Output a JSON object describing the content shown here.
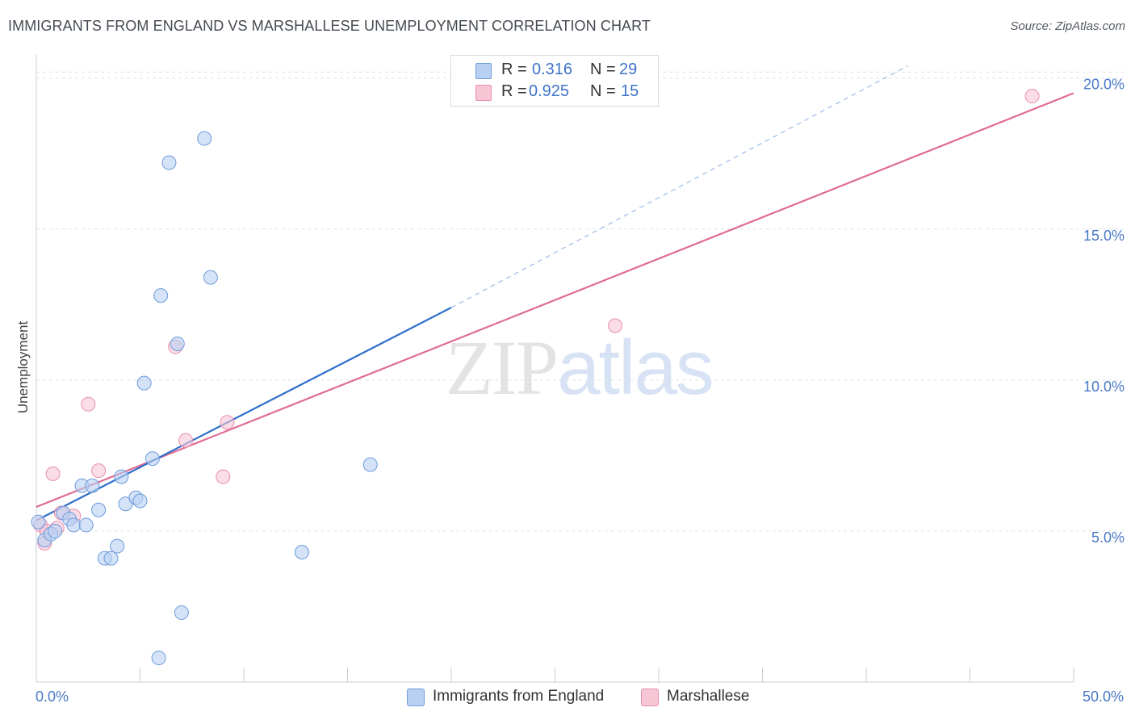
{
  "header": {
    "title": "IMMIGRANTS FROM ENGLAND VS MARSHALLESE UNEMPLOYMENT CORRELATION CHART",
    "source": "Source: ZipAtlas.com"
  },
  "watermark": {
    "zip": "ZIP",
    "atlas": "atlas"
  },
  "legend": {
    "rows": [
      {
        "r_label": "R =",
        "r_value": "0.316",
        "n_label": "N =",
        "n_value": "29"
      },
      {
        "r_label": "R =",
        "r_value": "0.925",
        "n_label": "N =",
        "n_value": "15"
      }
    ]
  },
  "bottom_legend": {
    "england": "Immigrants from England",
    "marshallese": "Marshallese"
  },
  "colors": {
    "england_fill": "#b8d0f1",
    "england_stroke": "#6f9bdb",
    "england_line": "#2e6fca",
    "marshallese_fill": "#f7c6d5",
    "marshallese_stroke": "#e88fac",
    "marshallese_line": "#e06b94",
    "grid": "#dfe2e6",
    "tick_text": "#4a79c7"
  },
  "chart_data": {
    "type": "scatter",
    "title": "IMMIGRANTS FROM ENGLAND VS MARSHALLESE UNEMPLOYMENT CORRELATION CHART",
    "xlabel": "",
    "ylabel": "Unemployment",
    "xlim": [
      0,
      50
    ],
    "ylim": [
      0,
      20.5
    ],
    "x_ticks": [
      {
        "value": 0,
        "label": "0.0%"
      },
      {
        "value": 50,
        "label": "50.0%"
      }
    ],
    "y_ticks": [
      {
        "value": 5,
        "label": "5.0%"
      },
      {
        "value": 10,
        "label": "10.0%"
      },
      {
        "value": 15,
        "label": "15.0%"
      },
      {
        "value": 20,
        "label": "20.0%"
      }
    ],
    "series": [
      {
        "name": "Immigrants from England",
        "R": 0.316,
        "N": 29,
        "points": [
          [
            0.1,
            5.3
          ],
          [
            0.4,
            4.7
          ],
          [
            0.7,
            4.9
          ],
          [
            0.9,
            5.0
          ],
          [
            1.3,
            5.6
          ],
          [
            1.6,
            5.4
          ],
          [
            1.8,
            5.2
          ],
          [
            2.4,
            5.2
          ],
          [
            3.0,
            5.7
          ],
          [
            2.2,
            6.5
          ],
          [
            2.7,
            6.5
          ],
          [
            4.1,
            6.8
          ],
          [
            4.3,
            5.9
          ],
          [
            4.8,
            6.1
          ],
          [
            5.0,
            6.0
          ],
          [
            3.3,
            4.1
          ],
          [
            3.6,
            4.1
          ],
          [
            3.9,
            4.5
          ],
          [
            5.6,
            7.4
          ],
          [
            5.2,
            9.9
          ],
          [
            6.0,
            12.8
          ],
          [
            6.4,
            17.2
          ],
          [
            6.8,
            11.2
          ],
          [
            8.1,
            18.0
          ],
          [
            8.4,
            13.4
          ],
          [
            7.0,
            2.3
          ],
          [
            5.9,
            0.8
          ],
          [
            12.8,
            4.3
          ],
          [
            16.1,
            7.2
          ]
        ],
        "trend": {
          "x0": 0,
          "y0": 5.35,
          "x1": 20,
          "y1": 12.4,
          "dash_to_x": 42,
          "dash_to_y": 20.4
        }
      },
      {
        "name": "Marshallese",
        "R": 0.925,
        "N": 15,
        "points": [
          [
            0.2,
            5.2
          ],
          [
            0.4,
            4.6
          ],
          [
            0.8,
            6.9
          ],
          [
            1.0,
            5.1
          ],
          [
            1.2,
            5.6
          ],
          [
            1.8,
            5.5
          ],
          [
            2.5,
            9.2
          ],
          [
            3.0,
            7.0
          ],
          [
            6.7,
            11.1
          ],
          [
            7.2,
            8.0
          ],
          [
            9.0,
            6.8
          ],
          [
            9.2,
            8.6
          ],
          [
            27.9,
            11.8
          ],
          [
            48.0,
            19.4
          ],
          [
            0.5,
            5.0
          ]
        ],
        "trend": {
          "x0": 0,
          "y0": 5.8,
          "x1": 50,
          "y1": 19.5
        }
      }
    ]
  }
}
